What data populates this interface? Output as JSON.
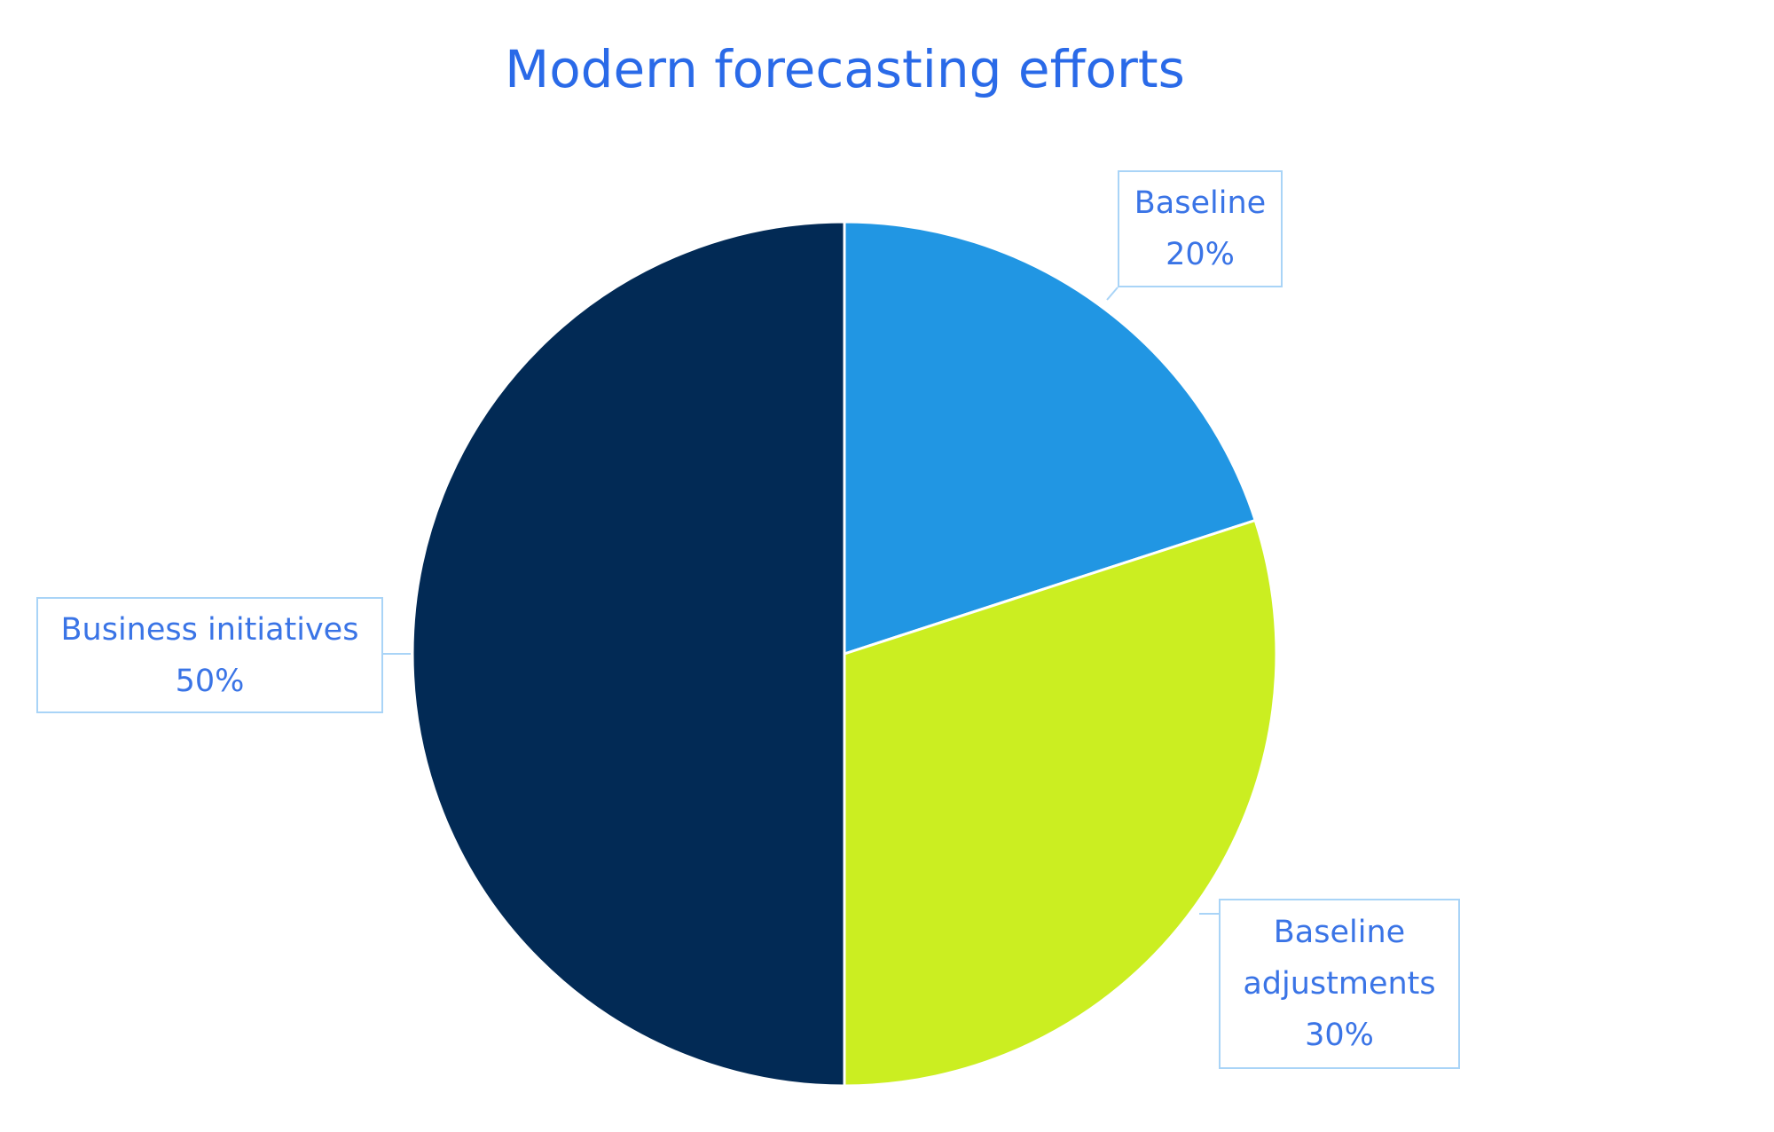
{
  "chart_data": {
    "type": "pie",
    "title": "Modern forecasting efforts",
    "categories": [
      "Baseline",
      "Baseline adjustments",
      "Business initiatives"
    ],
    "values": [
      20,
      30,
      50
    ],
    "value_labels": [
      "20%",
      "30%",
      "50%"
    ],
    "colors": [
      "#2196e3",
      "#cbee21",
      "#022a55"
    ]
  }
}
